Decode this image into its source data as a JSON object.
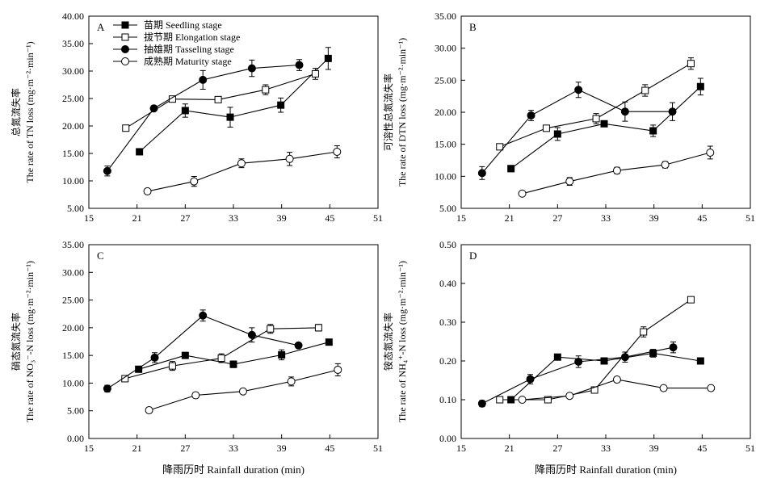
{
  "chart_data": [
    {
      "id": "A",
      "type": "line",
      "panel_label": "A",
      "ylabel_cn": "总氮流失率",
      "ylabel_en": "The rate of TN loss (mg·m⁻²·min⁻¹)",
      "xlabel": "",
      "xlim": [
        15,
        51
      ],
      "xticks": [
        "15",
        "21",
        "27",
        "33",
        "39",
        "45",
        "51"
      ],
      "ylim": [
        5,
        40
      ],
      "yticks": [
        "5.00",
        "10.00",
        "15.00",
        "20.00",
        "25.00",
        "30.00",
        "35.00",
        "40.00"
      ],
      "legend_position": "top-left",
      "series": [
        {
          "name": "苗期 Seedling stage",
          "marker": "filled-square",
          "x": [
            21.3,
            27.0,
            32.6,
            38.9,
            44.8
          ],
          "y": [
            15.3,
            22.8,
            21.6,
            23.8,
            32.3
          ],
          "err": [
            0.5,
            1.2,
            1.8,
            1.3,
            2.0
          ]
        },
        {
          "name": "拔节期 Elongation stage",
          "marker": "open-square",
          "x": [
            19.6,
            25.4,
            31.1,
            37.0,
            43.2
          ],
          "y": [
            19.6,
            24.9,
            24.8,
            26.6,
            29.5
          ],
          "err": [
            0.5,
            0.4,
            0.5,
            0.9,
            1.0
          ]
        },
        {
          "name": "抽雄期 Tasseling stage",
          "marker": "filled-circle",
          "x": [
            17.3,
            23.1,
            29.2,
            35.3,
            41.2
          ],
          "y": [
            11.8,
            23.2,
            28.4,
            30.5,
            31.1
          ],
          "err": [
            0.9,
            0.5,
            1.7,
            1.5,
            1.0
          ]
        },
        {
          "name": "成熟期 Maturity stage",
          "marker": "open-circle",
          "x": [
            22.3,
            28.1,
            34.0,
            40.0,
            45.9
          ],
          "y": [
            8.1,
            9.9,
            13.2,
            14.0,
            15.3
          ],
          "err": [
            0.3,
            0.9,
            0.8,
            1.2,
            1.1
          ]
        }
      ]
    },
    {
      "id": "B",
      "type": "line",
      "panel_label": "B",
      "ylabel_cn": "可溶性总氮流失率",
      "ylabel_en": "The rate of DTN loss (mg·m⁻²·min⁻¹)",
      "xlabel": "",
      "xlim": [
        15,
        51
      ],
      "xticks": [
        "15",
        "21",
        "27",
        "33",
        "39",
        "45",
        "51"
      ],
      "ylim": [
        5,
        35
      ],
      "yticks": [
        "5.00",
        "10.00",
        "15.00",
        "20.00",
        "25.00",
        "30.00",
        "35.00"
      ],
      "series": [
        {
          "name": "苗期 Seedling stage",
          "marker": "filled-square",
          "x": [
            21.2,
            27.0,
            32.8,
            38.9,
            44.8
          ],
          "y": [
            11.2,
            16.6,
            18.2,
            17.1,
            24.0
          ],
          "err": [
            0.5,
            1.0,
            0.4,
            0.9,
            1.3
          ]
        },
        {
          "name": "拔节期 Elongation stage",
          "marker": "open-square",
          "x": [
            19.8,
            25.6,
            31.8,
            37.9,
            43.6
          ],
          "y": [
            14.6,
            17.5,
            19.0,
            23.4,
            27.6
          ],
          "err": [
            0.4,
            0.4,
            0.8,
            0.9,
            0.9
          ]
        },
        {
          "name": "抽雄期 Tasseling stage",
          "marker": "filled-circle",
          "x": [
            17.6,
            23.7,
            29.6,
            35.4,
            41.3
          ],
          "y": [
            10.5,
            19.5,
            23.5,
            20.1,
            20.1
          ],
          "err": [
            1.0,
            0.8,
            1.2,
            1.5,
            1.4
          ]
        },
        {
          "name": "成熟期 Maturity stage",
          "marker": "open-circle",
          "x": [
            22.6,
            28.5,
            34.4,
            40.4,
            46.0
          ],
          "y": [
            7.3,
            9.2,
            10.9,
            11.8,
            13.7
          ],
          "err": [
            0.3,
            0.6,
            0.5,
            0.5,
            1.0
          ]
        }
      ]
    },
    {
      "id": "C",
      "type": "line",
      "panel_label": "C",
      "ylabel_cn": "硝态氮流失率",
      "ylabel_en": "The rate of NO₃⁻-N loss (mg·m⁻²·min⁻¹)",
      "xlabel": "",
      "xlim": [
        15,
        51
      ],
      "xticks": [
        "15",
        "21",
        "27",
        "33",
        "39",
        "45",
        "51"
      ],
      "ylim": [
        0,
        35
      ],
      "yticks": [
        "0.00",
        "5.00",
        "10.00",
        "15.00",
        "20.00",
        "25.00",
        "30.00",
        "35.00"
      ],
      "series": [
        {
          "name": "苗期 Seedling stage",
          "marker": "filled-square",
          "x": [
            21.2,
            27.0,
            33.0,
            39.0,
            44.9
          ],
          "y": [
            12.5,
            15.0,
            13.4,
            15.1,
            17.4
          ],
          "err": [
            0.4,
            0.4,
            0.6,
            0.9,
            0.4
          ]
        },
        {
          "name": "拔节期 Elongation stage",
          "marker": "open-square",
          "x": [
            19.5,
            25.4,
            31.5,
            37.6,
            43.6
          ],
          "y": [
            10.8,
            13.1,
            14.5,
            19.8,
            20.0
          ],
          "err": [
            0.4,
            0.8,
            0.8,
            0.8,
            0.6
          ]
        },
        {
          "name": "抽雄期 Tasseling stage",
          "marker": "filled-circle",
          "x": [
            17.3,
            23.2,
            29.2,
            35.3,
            41.1
          ],
          "y": [
            9.0,
            14.6,
            22.2,
            18.7,
            16.8
          ],
          "err": [
            0.6,
            0.9,
            1.0,
            1.3,
            0.4
          ]
        },
        {
          "name": "成熟期 Maturity stage",
          "marker": "open-circle",
          "x": [
            22.5,
            28.3,
            34.2,
            40.2,
            46.0
          ],
          "y": [
            5.1,
            7.8,
            8.5,
            10.3,
            12.4
          ],
          "err": [
            0.3,
            0.5,
            0.3,
            0.8,
            1.1
          ]
        }
      ]
    },
    {
      "id": "D",
      "type": "line",
      "panel_label": "D",
      "ylabel_cn": "铵态氮流失率",
      "ylabel_en": "The rate of NH₄⁺-N loss (mg·m⁻²·min⁻¹)",
      "xlabel": "",
      "xlim": [
        15,
        51
      ],
      "xticks": [
        "15",
        "21",
        "27",
        "33",
        "39",
        "45",
        "51"
      ],
      "ylim": [
        0,
        0.5
      ],
      "yticks": [
        "0.00",
        "0.10",
        "0.20",
        "0.30",
        "0.40",
        "0.50"
      ],
      "series": [
        {
          "name": "苗期 Seedling stage",
          "marker": "filled-square",
          "x": [
            21.2,
            27.0,
            32.8,
            38.9,
            44.8
          ],
          "y": [
            0.1,
            0.21,
            0.2,
            0.22,
            0.2
          ],
          "err": [
            0.005,
            0.007,
            0.006,
            0.01,
            0.008
          ]
        },
        {
          "name": "拔节期 Elongation stage",
          "marker": "open-square",
          "x": [
            19.8,
            25.8,
            31.6,
            37.7,
            43.6
          ],
          "y": [
            0.1,
            0.1,
            0.125,
            0.275,
            0.358
          ],
          "err": [
            0.004,
            0.004,
            0.005,
            0.013,
            0.006
          ]
        },
        {
          "name": "抽雄期 Tasseling stage",
          "marker": "filled-circle",
          "x": [
            17.6,
            23.6,
            29.6,
            35.4,
            41.4
          ],
          "y": [
            0.09,
            0.153,
            0.198,
            0.21,
            0.235
          ],
          "err": [
            0.008,
            0.012,
            0.015,
            0.013,
            0.014
          ]
        },
        {
          "name": "成熟期 Maturity stage",
          "marker": "open-circle",
          "x": [
            22.6,
            28.5,
            34.4,
            40.2,
            46.1
          ],
          "y": [
            0.1,
            0.11,
            0.152,
            0.13,
            0.13
          ],
          "err": [
            0.004,
            0.004,
            0.006,
            0.004,
            0.004
          ]
        }
      ]
    }
  ],
  "shared_xlabel": "降雨历时 Rainfall duration (min)"
}
